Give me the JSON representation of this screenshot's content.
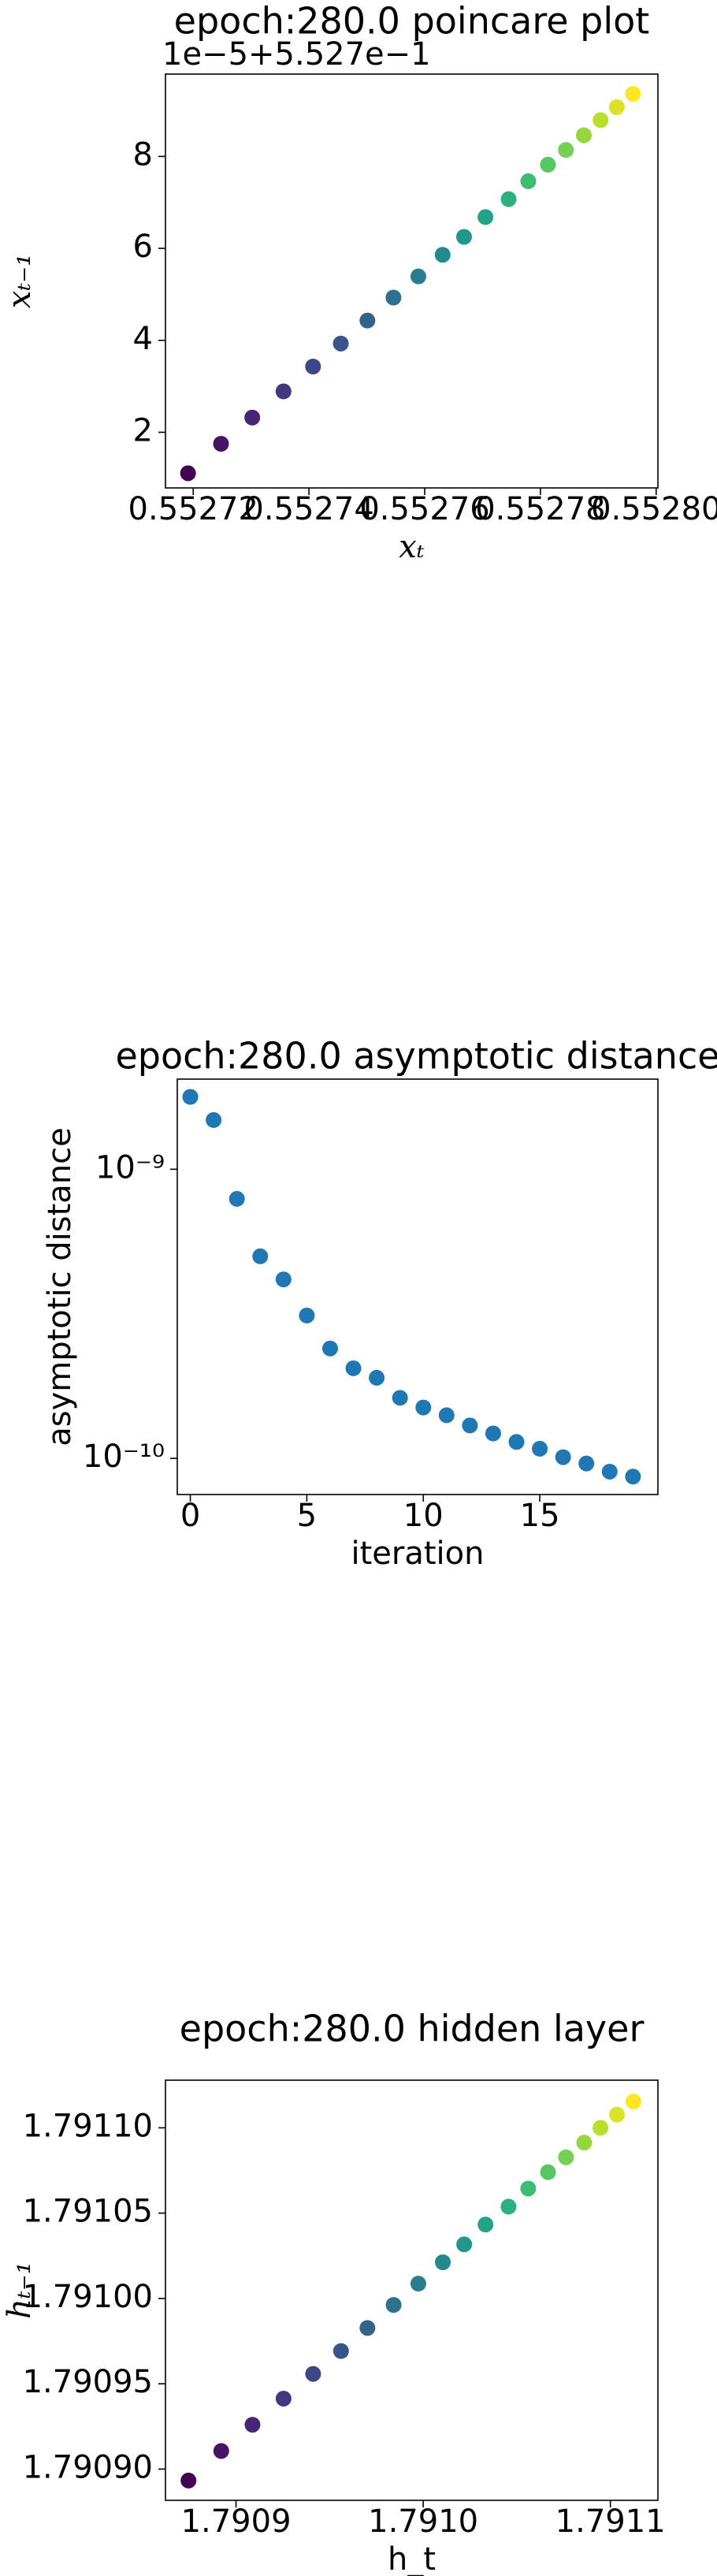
{
  "chart_data": [
    {
      "type": "scatter",
      "title": "epoch:280.0 poincare plot",
      "offset_text": "1e−5+5.527e−1",
      "xlabel": "xₜ",
      "ylabel": "xₜ₋₁",
      "colormap": "viridis",
      "x": [
        0.5527191,
        0.5527248,
        0.5527302,
        0.5527356,
        0.5527407,
        0.5527455,
        0.5527501,
        0.5527546,
        0.5527589,
        0.5527631,
        0.5527668,
        0.5527705,
        0.5527745,
        0.5527779,
        0.5527813,
        0.5527844,
        0.5527875,
        0.5527904,
        0.5527932,
        0.552796
      ],
      "values": [
        1.11,
        1.75,
        2.32,
        2.89,
        3.43,
        3.93,
        4.43,
        4.93,
        5.39,
        5.86,
        6.25,
        6.68,
        7.07,
        7.46,
        7.82,
        8.14,
        8.46,
        8.79,
        9.07,
        9.36
      ],
      "xlim": [
        0.5527152,
        0.5528003
      ],
      "xticks": [
        0.55272,
        0.55274,
        0.55276,
        0.55278,
        {
          "value": 0.5528,
          "label": "0.55280"
        }
      ],
      "ylim": [
        0.79,
        9.79
      ],
      "yticks": [
        2,
        4,
        6,
        8
      ]
    },
    {
      "type": "scatter",
      "title": "epoch:280.0 asymptotic distance",
      "xlabel": "iteration",
      "ylabel": "asymptotic distance",
      "color": "#1f77b4",
      "log_y": true,
      "x": [
        0,
        1,
        2,
        3,
        4,
        5,
        6,
        7,
        8,
        9,
        10,
        11,
        12,
        13,
        14,
        15,
        16,
        17,
        18,
        19
      ],
      "values": [
        1.78e-09,
        1.48e-09,
        7.9e-10,
        5e-10,
        4.16e-10,
        3.12e-10,
        2.4e-10,
        2.05e-10,
        1.9e-10,
        1.62e-10,
        1.5e-10,
        1.41e-10,
        1.3e-10,
        1.22e-10,
        1.14e-10,
        1.08e-10,
        1.01e-10,
        9.6e-11,
        9e-11,
        8.65e-11
      ],
      "xlim": [
        -0.56,
        20.07
      ],
      "xticks": [
        0,
        5,
        10,
        15
      ],
      "ylim": [
        7.5e-11,
        2.05e-09
      ],
      "yticks": [
        {
          "value": 1e-09,
          "label": "10⁻⁹"
        },
        {
          "value": 1e-10,
          "label": "10⁻¹⁰"
        }
      ]
    },
    {
      "type": "scatter",
      "title": "epoch:280.0 hidden layer",
      "xlabel": "h_t",
      "ylabel": "hₜ₋₁",
      "colormap": "viridis",
      "x": [
        1.7908746,
        1.7908921,
        1.7909088,
        1.7909254,
        1.7909412,
        1.7909561,
        1.7909702,
        1.7909842,
        1.7909974,
        1.7910105,
        1.7910219,
        1.7910333,
        1.7910456,
        1.7910561,
        1.7910667,
        1.7910763,
        1.791086,
        1.7910947,
        1.7911035,
        1.7911123
      ],
      "values": [
        1.7908933,
        1.7909106,
        1.790926,
        1.7909413,
        1.7909558,
        1.7909692,
        1.7909827,
        1.7909962,
        1.7910087,
        1.7910212,
        1.7910317,
        1.7910433,
        1.7910538,
        1.7910644,
        1.791074,
        1.7910827,
        1.7910913,
        1.7911,
        1.7911077,
        1.7911154
      ],
      "xlim": [
        1.7908623,
        1.7911254
      ],
      "xticks": [
        1.7909,
        {
          "value": 1.791,
          "label": "1.7910"
        },
        1.7911
      ],
      "ylim": [
        1.7908817,
        1.7911279
      ],
      "yticks": [
        {
          "value": 1.7909,
          "label": "1.79090"
        },
        {
          "value": 1.79095,
          "label": "1.79095"
        },
        {
          "value": 1.791,
          "label": "1.79100"
        },
        {
          "value": 1.79105,
          "label": "1.79105"
        },
        {
          "value": 1.7911,
          "label": "1.79110"
        }
      ]
    }
  ]
}
